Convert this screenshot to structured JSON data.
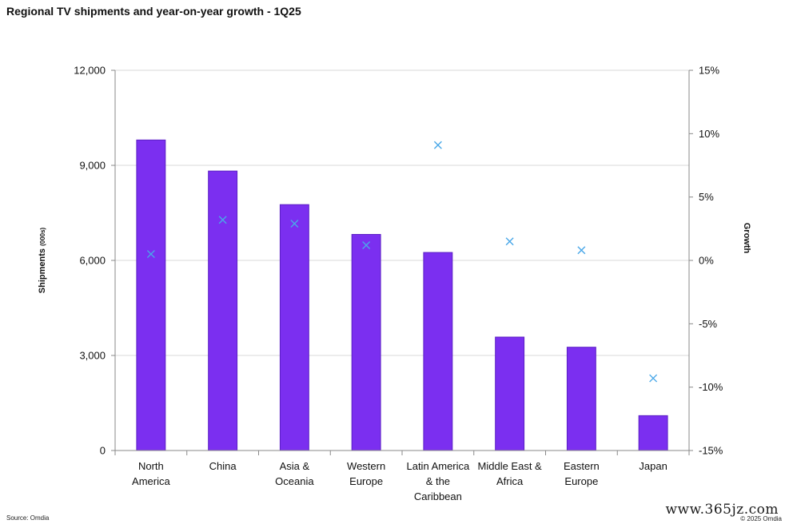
{
  "chart_data": {
    "type": "bar",
    "title": "Regional TV shipments and year-on-year growth - 1Q25",
    "categories": [
      [
        "North",
        "America"
      ],
      [
        "China"
      ],
      [
        "Asia &",
        "Oceania"
      ],
      [
        "Western",
        "Europe"
      ],
      [
        "Latin America",
        "& the",
        "Caribbean"
      ],
      [
        "Middle East &",
        "Africa"
      ],
      [
        "Eastern",
        "Europe"
      ],
      [
        "Japan"
      ]
    ],
    "series": [
      {
        "type": "bar",
        "axis": "left",
        "color": "#7b2ff0",
        "values": [
          9800,
          8820,
          7760,
          6820,
          6250,
          3580,
          3260,
          1100
        ]
      },
      {
        "type": "scatter",
        "axis": "right",
        "marker": "x",
        "color": "#4aa8e8",
        "values": [
          0.5,
          3.2,
          2.9,
          1.2,
          9.1,
          1.5,
          0.8,
          -9.3
        ]
      }
    ],
    "ylabel": "Shipments",
    "ylabel_unit": "(000s)",
    "y2label": "Growth",
    "ylim": [
      0,
      12000
    ],
    "yticks": [
      "0",
      "3,000",
      "6,000",
      "9,000",
      "12,000"
    ],
    "ytick_values": [
      0,
      3000,
      6000,
      9000,
      12000
    ],
    "y2lim": [
      -15,
      15
    ],
    "y2ticks": [
      "-15%",
      "-10%",
      "-5%",
      "0%",
      "5%",
      "10%",
      "15%"
    ],
    "y2tick_values": [
      -15,
      -10,
      -5,
      0,
      5,
      10,
      15
    ],
    "grid": true
  },
  "footer": {
    "source": "Source: Omdia",
    "copyright": "© 2025 Omdia",
    "watermark": "www.365jz.com"
  }
}
